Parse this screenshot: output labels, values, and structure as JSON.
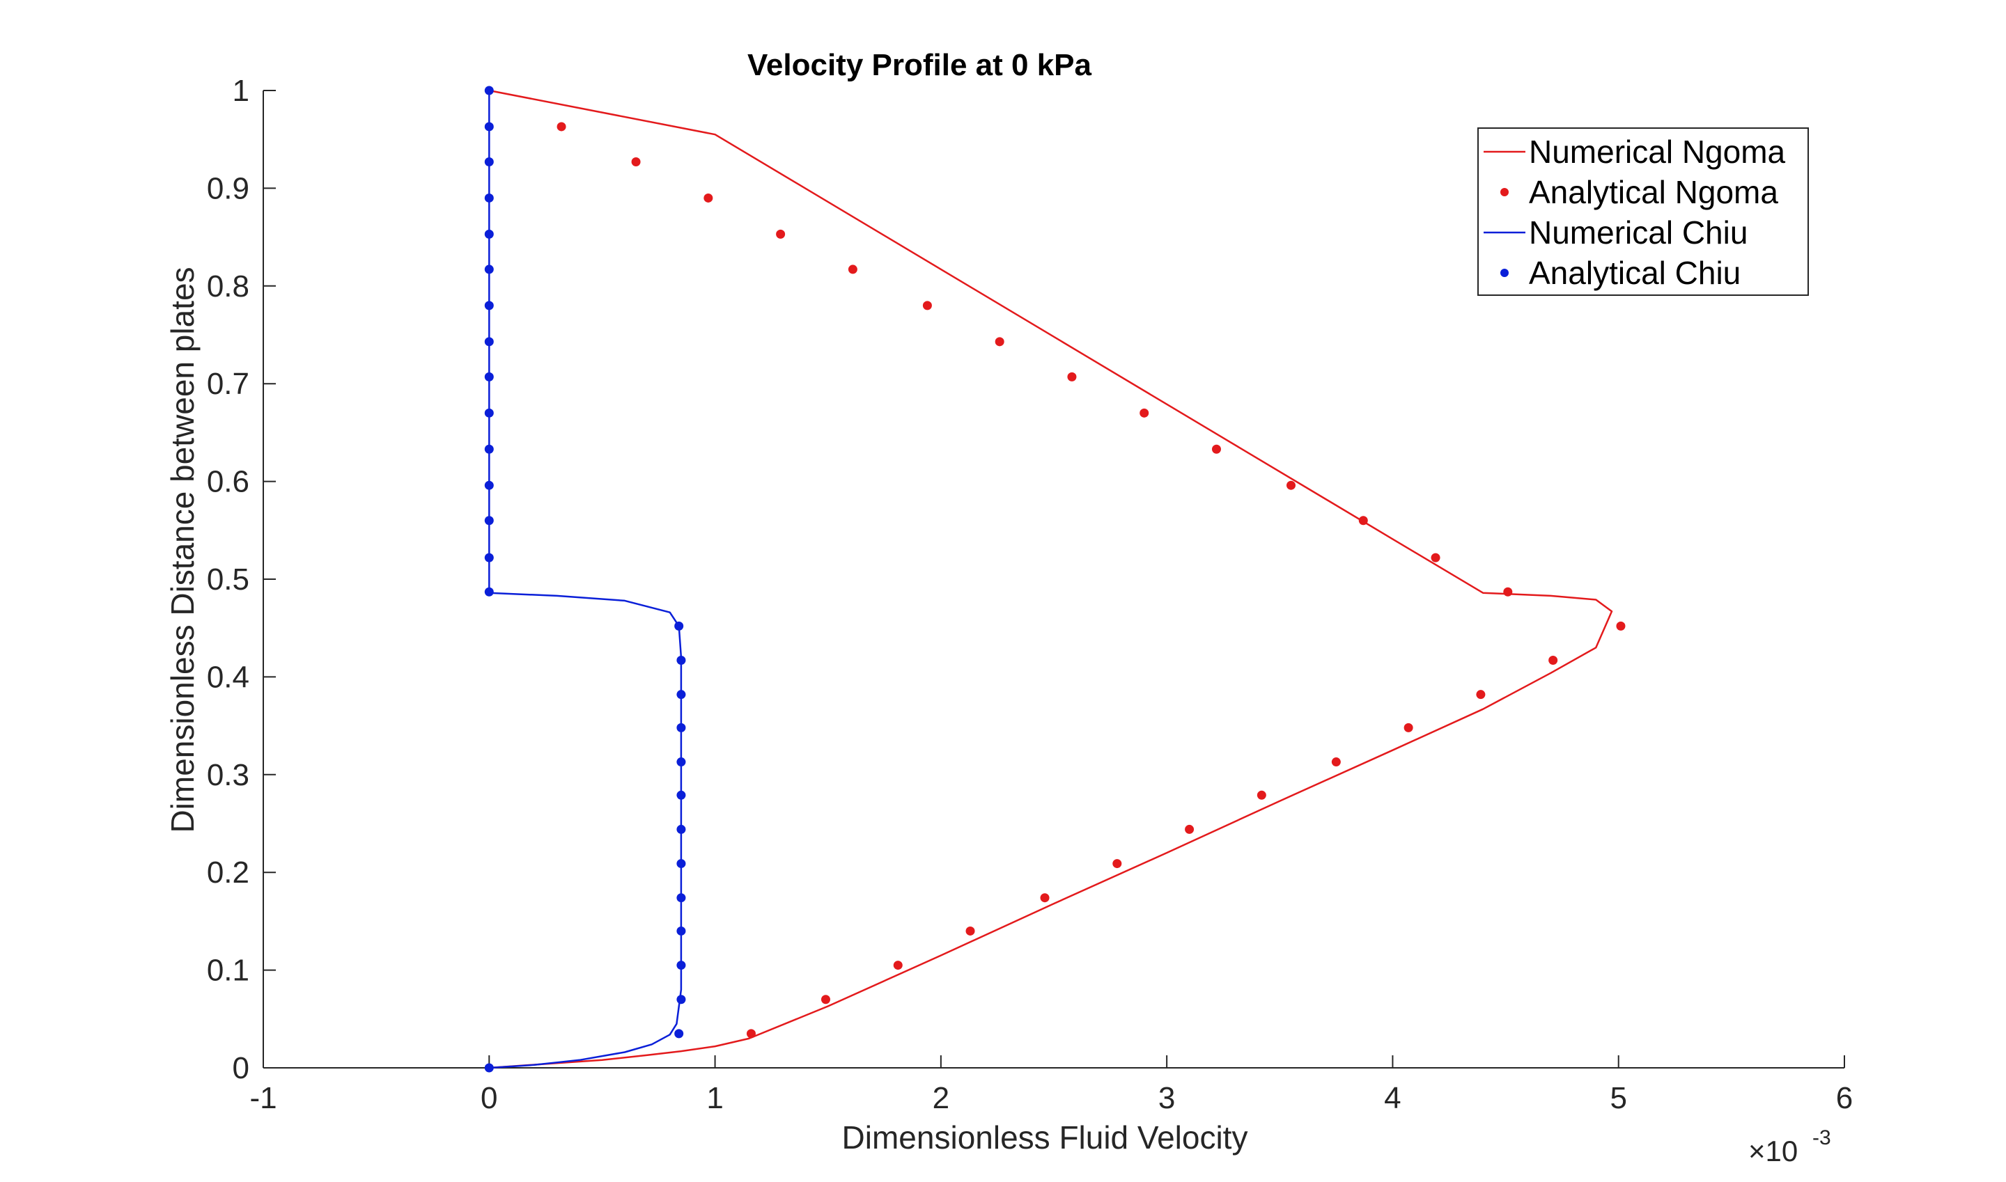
{
  "chart_data": {
    "type": "line",
    "title": "Velocity Profile at 0 kPa",
    "xlabel": "Dimensionless Fluid Velocity",
    "ylabel": "Dimensionless Distance between plates",
    "x_exponent_base": "×10",
    "x_exponent_power": "-3",
    "xlim": [
      -1,
      6
    ],
    "ylim": [
      0,
      1
    ],
    "xticks": [
      -1,
      0,
      1,
      2,
      3,
      4,
      5,
      6
    ],
    "xtick_labels": [
      "-1",
      "0",
      "1",
      "2",
      "3",
      "4",
      "5",
      "6"
    ],
    "yticks": [
      0,
      0.1,
      0.2,
      0.3,
      0.4,
      0.5,
      0.6,
      0.7,
      0.8,
      0.9,
      1
    ],
    "ytick_labels": [
      "0",
      "0.1",
      "0.2",
      "0.3",
      "0.4",
      "0.5",
      "0.6",
      "0.7",
      "0.8",
      "0.9",
      "1"
    ],
    "grid": false,
    "legend_position": "top-right",
    "series": [
      {
        "name": "Numerical Ngoma",
        "kind": "line",
        "color": "#e31a1c",
        "x": [
          0,
          0.25,
          0.5,
          0.7,
          0.85,
          1.0,
          1.15,
          1.5,
          2.0,
          2.5,
          3.0,
          3.5,
          4.0,
          4.4,
          4.7,
          4.9,
          4.97,
          4.9,
          4.7,
          4.4,
          4.0,
          3.0,
          2.0,
          1.0,
          0
        ],
        "y": [
          0,
          0.004,
          0.008,
          0.013,
          0.017,
          0.022,
          0.03,
          0.063,
          0.115,
          0.168,
          0.22,
          0.273,
          0.325,
          0.367,
          0.404,
          0.43,
          0.467,
          0.479,
          0.483,
          0.486,
          0.541,
          0.679,
          0.817,
          0.955,
          1.0
        ]
      },
      {
        "name": "Analytical Ngoma",
        "kind": "markers",
        "color": "#e31a1c",
        "x": [
          1.16,
          1.49,
          1.81,
          2.13,
          2.46,
          2.78,
          3.1,
          3.42,
          3.75,
          4.07,
          4.39,
          4.71,
          5.01,
          4.51,
          4.19,
          3.87,
          3.55,
          3.22,
          2.9,
          2.58,
          2.26,
          1.94,
          1.61,
          1.29,
          0.97,
          0.65,
          0.32
        ],
        "y": [
          0.035,
          0.07,
          0.105,
          0.14,
          0.174,
          0.209,
          0.244,
          0.279,
          0.313,
          0.348,
          0.382,
          0.417,
          0.452,
          0.487,
          0.522,
          0.56,
          0.596,
          0.633,
          0.67,
          0.707,
          0.743,
          0.78,
          0.817,
          0.853,
          0.89,
          0.927,
          0.963
        ]
      },
      {
        "name": "Numerical Chiu",
        "kind": "line",
        "color": "#0a1fd8",
        "x": [
          0,
          0.2,
          0.4,
          0.6,
          0.72,
          0.8,
          0.83,
          0.85,
          0.85,
          0.84,
          0.8,
          0.6,
          0.3,
          0,
          0,
          0
        ],
        "y": [
          0,
          0.003,
          0.008,
          0.016,
          0.024,
          0.034,
          0.045,
          0.08,
          0.42,
          0.452,
          0.466,
          0.478,
          0.483,
          0.486,
          0.7,
          1.0
        ]
      },
      {
        "name": "Analytical Chiu",
        "kind": "markers",
        "color": "#0a1fd8",
        "x": [
          0,
          0.84,
          0.85,
          0.85,
          0.85,
          0.85,
          0.85,
          0.85,
          0.85,
          0.85,
          0.85,
          0.85,
          0.85,
          0.84,
          0,
          0,
          0,
          0,
          0,
          0,
          0,
          0,
          0,
          0,
          0,
          0,
          0,
          0
        ],
        "y": [
          0,
          0.035,
          0.07,
          0.105,
          0.14,
          0.174,
          0.209,
          0.244,
          0.279,
          0.313,
          0.348,
          0.382,
          0.417,
          0.452,
          0.487,
          0.522,
          0.56,
          0.596,
          0.633,
          0.67,
          0.707,
          0.743,
          0.78,
          0.817,
          0.853,
          0.89,
          0.927,
          0.963
        ]
      }
    ]
  },
  "chiu_extra_point": {
    "x": 0,
    "y": 1.0
  },
  "style": {
    "axis_color": "#262626",
    "background": "#ffffff"
  }
}
